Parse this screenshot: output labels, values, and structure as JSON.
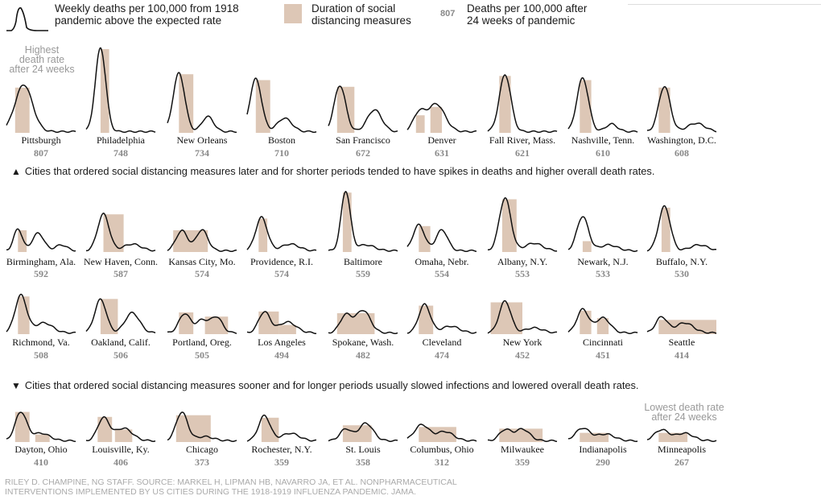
{
  "legend": {
    "line_label": "Weekly deaths per 100,000 from 1918 pandemic above the expected rate",
    "line_label_1": "Weekly deaths per 100,000 from 1918",
    "line_label_2": "pandemic above the expected rate",
    "bar_label_1": "Duration of social",
    "bar_label_2": "distancing measures",
    "number_example": "807",
    "number_label_1": "Deaths per 100,000 after",
    "number_label_2": "24 weeks of pandemic",
    "bar_color": "#ddc7b6",
    "line_color": "#111111"
  },
  "notes": {
    "highest_1": "Highest",
    "highest_2": "death rate",
    "highest_3": "after 24 weeks",
    "lowest_1": "Lowest death rate",
    "lowest_2": "after 24 weeks",
    "later": "Cities that ordered social distancing measures later and for shorter periods tended to have spikes in deaths and higher overall death rates.",
    "sooner": "Cities that ordered social distancing measures sooner and for longer periods usually slowed infections and lowered overall death rates.",
    "up_arrow": "▲",
    "down_arrow": "▼"
  },
  "credit": {
    "line1": "RILEY D. CHAMPINE, NG STAFF. SOURCE: MARKEL H, LIPMAN HB, NAVARRO JA, ET AL. NONPHARMACEUTICAL",
    "line2": "INTERVENTIONS IMPLEMENTED BY US CITIES DURING THE 1918-1919 INFLUENZA PANDEMIC. JAMA."
  },
  "chart_data": {
    "type": "line",
    "note": "Small multiples. peaks: [week, height] of weekly-death curve components over 24 weeks; bars: [start_week, end_week, height] of social distancing periods; deaths: deaths per 100,000 after 24 weeks.",
    "cities": [
      {
        "name": "Pittsburgh",
        "deaths": "807",
        "peaks": [
          [
            6,
            56,
            3
          ]
        ],
        "bars": [
          [
            3,
            8,
            54
          ]
        ]
      },
      {
        "name": "Philadelphia",
        "deaths": "748",
        "peaks": [
          [
            5,
            100,
            1.8
          ]
        ],
        "bars": [
          [
            5,
            8,
            100
          ]
        ]
      },
      {
        "name": "New Orleans",
        "deaths": "734",
        "peaks": [
          [
            4,
            70,
            2
          ],
          [
            14,
            18,
            2
          ]
        ],
        "bars": [
          [
            4,
            9,
            70
          ]
        ]
      },
      {
        "name": "Boston",
        "deaths": "710",
        "peaks": [
          [
            3,
            63,
            2
          ],
          [
            13,
            16,
            2.5
          ]
        ],
        "bars": [
          [
            3,
            8,
            63
          ]
        ]
      },
      {
        "name": "San Francisco",
        "deaths": "672",
        "peaks": [
          [
            4,
            55,
            2
          ],
          [
            16,
            26,
            2.5
          ]
        ],
        "bars": [
          [
            3,
            9,
            55
          ]
        ]
      },
      {
        "name": "Denver",
        "deaths": "631",
        "peaks": [
          [
            4,
            21,
            2
          ],
          [
            10,
            33,
            3
          ]
        ],
        "bars": [
          [
            3,
            6,
            21
          ],
          [
            8,
            12,
            31
          ]
        ]
      },
      {
        "name": "Fall River, Mass.",
        "deaths": "621",
        "peaks": [
          [
            6,
            68,
            2
          ]
        ],
        "bars": [
          [
            4,
            8,
            68
          ]
        ]
      },
      {
        "name": "Nashville, Tenn.",
        "deaths": "610",
        "peaks": [
          [
            5,
            64,
            2
          ],
          [
            15,
            9,
            2
          ]
        ],
        "bars": [
          [
            4,
            8,
            63
          ]
        ]
      },
      {
        "name": "Washington, D.C.",
        "deaths": "608",
        "peaks": [
          [
            6,
            54,
            2
          ],
          [
            17,
            10,
            3
          ]
        ],
        "bars": [
          [
            4,
            8,
            54
          ]
        ]
      },
      {
        "name": "Birmingham, Ala.",
        "deaths": "592",
        "peaks": [
          [
            4,
            26,
            1.5
          ],
          [
            11,
            21,
            2
          ],
          [
            19,
            7,
            2
          ]
        ],
        "bars": [
          [
            4,
            7,
            26
          ]
        ]
      },
      {
        "name": "New Haven, Conn.",
        "deaths": "587",
        "peaks": [
          [
            6,
            44,
            2
          ],
          [
            16,
            8,
            3
          ]
        ],
        "bars": [
          [
            6,
            13,
            45
          ]
        ]
      },
      {
        "name": "Kansas City, Mo.",
        "deaths": "574",
        "peaks": [
          [
            5,
            24,
            2
          ],
          [
            12,
            25,
            2
          ]
        ],
        "bars": [
          [
            2,
            14,
            26
          ]
        ]
      },
      {
        "name": "Providence, R.I.",
        "deaths": "574",
        "peaks": [
          [
            5,
            40,
            2
          ],
          [
            15,
            8,
            3
          ]
        ],
        "bars": [
          [
            4,
            7,
            40
          ]
        ]
      },
      {
        "name": "Baltimore",
        "deaths": "559",
        "peaks": [
          [
            6,
            71,
            1.6
          ],
          [
            13,
            7,
            3
          ]
        ],
        "bars": [
          [
            5,
            8,
            71
          ]
        ]
      },
      {
        "name": "Omaha, Nebr.",
        "deaths": "554",
        "peaks": [
          [
            4,
            31,
            2
          ],
          [
            12,
            25,
            2
          ]
        ],
        "bars": [
          [
            4,
            8,
            31
          ]
        ]
      },
      {
        "name": "Albany, N.Y.",
        "deaths": "553",
        "peaks": [
          [
            6,
            63,
            2
          ],
          [
            16,
            9,
            3
          ]
        ],
        "bars": [
          [
            5,
            10,
            63
          ]
        ]
      },
      {
        "name": "Newark, N.J.",
        "deaths": "533",
        "peaks": [
          [
            5,
            41,
            2
          ],
          [
            14,
            7,
            3
          ]
        ],
        "bars": [
          [
            5,
            8,
            13
          ]
        ]
      },
      {
        "name": "Buffalo, N.Y.",
        "deaths": "530",
        "peaks": [
          [
            6,
            53,
            2
          ],
          [
            18,
            7,
            3
          ]
        ],
        "bars": [
          [
            5,
            8,
            53
          ]
        ]
      },
      {
        "name": "Richmond, Va.",
        "deaths": "508",
        "peaks": [
          [
            5,
            45,
            2
          ],
          [
            13,
            12,
            3
          ]
        ],
        "bars": [
          [
            4,
            8,
            45
          ]
        ]
      },
      {
        "name": "Oakland, Calif.",
        "deaths": "506",
        "peaks": [
          [
            5,
            40,
            2
          ],
          [
            16,
            24,
            2.5
          ]
        ],
        "bars": [
          [
            5,
            11,
            42
          ]
        ]
      },
      {
        "name": "Portland, Oreg.",
        "deaths": "505",
        "peaks": [
          [
            6,
            23,
            2
          ],
          [
            12,
            15,
            2
          ],
          [
            17,
            19,
            2
          ]
        ],
        "bars": [
          [
            4,
            9,
            26
          ],
          [
            13,
            21,
            21
          ]
        ]
      },
      {
        "name": "Los Angeles",
        "deaths": "494",
        "peaks": [
          [
            6,
            25,
            2
          ],
          [
            14,
            13,
            3
          ]
        ],
        "bars": [
          [
            4,
            11,
            27
          ],
          [
            11,
            17,
            11
          ]
        ]
      },
      {
        "name": "Spokane, Wash.",
        "deaths": "482",
        "peaks": [
          [
            6,
            21,
            2
          ],
          [
            12,
            27,
            2.5
          ]
        ],
        "bars": [
          [
            3,
            16,
            25
          ]
        ]
      },
      {
        "name": "Cleveland",
        "deaths": "474",
        "peaks": [
          [
            6,
            34,
            2
          ],
          [
            15,
            8,
            3
          ]
        ],
        "bars": [
          [
            4,
            9,
            34
          ]
        ]
      },
      {
        "name": "New York",
        "deaths": "452",
        "peaks": [
          [
            6,
            38,
            2
          ],
          [
            16,
            6,
            3
          ]
        ],
        "bars": [
          [
            1,
            12,
            38
          ]
        ]
      },
      {
        "name": "Cincinnati",
        "deaths": "451",
        "peaks": [
          [
            5,
            28,
            2
          ],
          [
            12,
            18,
            2.5
          ]
        ],
        "bars": [
          [
            4,
            8,
            28
          ],
          [
            10,
            14,
            19
          ]
        ]
      },
      {
        "name": "Seattle",
        "deaths": "414",
        "peaks": [
          [
            5,
            19,
            2
          ],
          [
            13,
            12,
            3
          ]
        ],
        "bars": [
          [
            4,
            24,
            17
          ]
        ]
      },
      {
        "name": "Dayton, Ohio",
        "deaths": "410",
        "peaks": [
          [
            5,
            34,
            2
          ],
          [
            12,
            9,
            3
          ]
        ],
        "bars": [
          [
            3,
            8,
            36
          ],
          [
            10,
            15,
            9
          ]
        ]
      },
      {
        "name": "Louisville, Ky.",
        "deaths": "406",
        "peaks": [
          [
            6,
            27,
            2
          ],
          [
            13,
            15,
            3
          ]
        ],
        "bars": [
          [
            4,
            9,
            30
          ],
          [
            10,
            16,
            15
          ]
        ]
      },
      {
        "name": "Chicago",
        "deaths": "373",
        "peaks": [
          [
            5,
            34,
            2
          ],
          [
            13,
            5,
            3
          ]
        ],
        "bars": [
          [
            3,
            15,
            32
          ]
        ]
      },
      {
        "name": "Rochester, N.Y.",
        "deaths": "359",
        "peaks": [
          [
            6,
            30,
            2
          ],
          [
            15,
            9,
            3
          ]
        ],
        "bars": [
          [
            5,
            11,
            29
          ]
        ]
      },
      {
        "name": "St. Louis",
        "deaths": "358",
        "peaks": [
          [
            6,
            14,
            2
          ],
          [
            13,
            21,
            2.5
          ]
        ],
        "bars": [
          [
            5,
            15,
            20
          ]
        ]
      },
      {
        "name": "Columbus, Ohio",
        "deaths": "312",
        "peaks": [
          [
            5,
            19,
            2.5
          ],
          [
            13,
            11,
            3
          ]
        ],
        "bars": [
          [
            4,
            17,
            18
          ]
        ]
      },
      {
        "name": "Milwaukee",
        "deaths": "359",
        "peaks": [
          [
            6,
            13,
            2
          ],
          [
            12,
            14,
            2.5
          ]
        ],
        "bars": [
          [
            4,
            19,
            16
          ]
        ]
      },
      {
        "name": "Indianapolis",
        "deaths": "290",
        "peaks": [
          [
            5,
            15,
            2.5
          ],
          [
            13,
            8,
            3
          ]
        ],
        "bars": [
          [
            4,
            14,
            11
          ]
        ]
      },
      {
        "name": "Minneapolis",
        "deaths": "267",
        "peaks": [
          [
            5,
            13,
            2.5
          ],
          [
            13,
            9,
            3
          ]
        ],
        "bars": [
          [
            4,
            14,
            11
          ]
        ]
      }
    ]
  }
}
